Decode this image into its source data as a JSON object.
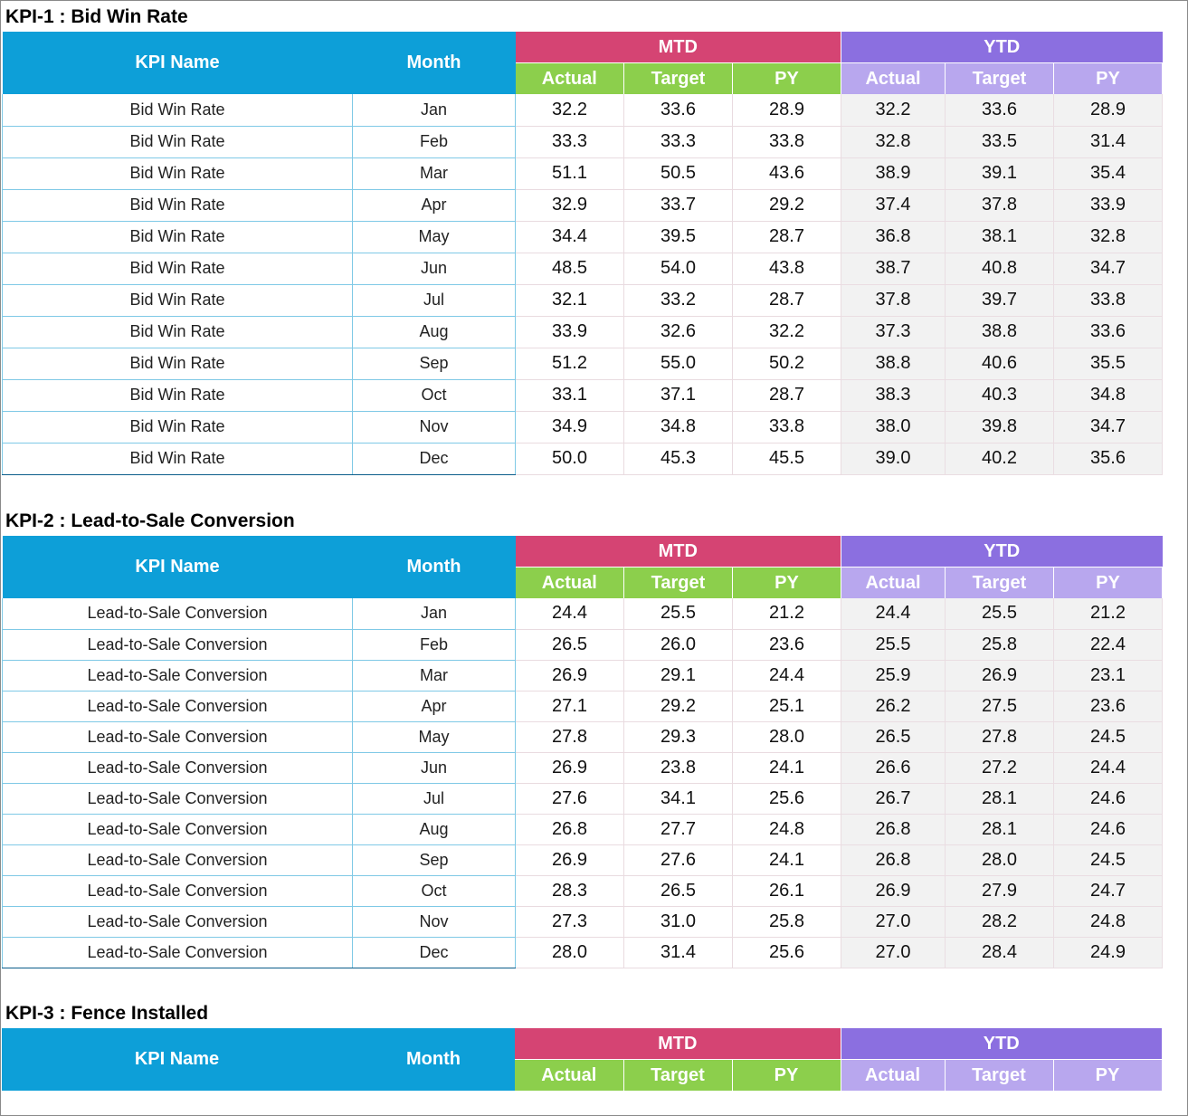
{
  "headers": {
    "kpi_name": "KPI Name",
    "month": "Month",
    "mtd": "MTD",
    "ytd": "YTD",
    "actual": "Actual",
    "target": "Target",
    "py": "PY"
  },
  "kpis": [
    {
      "title": "KPI-1 : Bid Win Rate",
      "rows": [
        {
          "name": "Bid Win Rate",
          "month": "Jan",
          "mtd_actual": "32.2",
          "mtd_target": "33.6",
          "mtd_py": "28.9",
          "ytd_actual": "32.2",
          "ytd_target": "33.6",
          "ytd_py": "28.9"
        },
        {
          "name": "Bid Win Rate",
          "month": "Feb",
          "mtd_actual": "33.3",
          "mtd_target": "33.3",
          "mtd_py": "33.8",
          "ytd_actual": "32.8",
          "ytd_target": "33.5",
          "ytd_py": "31.4"
        },
        {
          "name": "Bid Win Rate",
          "month": "Mar",
          "mtd_actual": "51.1",
          "mtd_target": "50.5",
          "mtd_py": "43.6",
          "ytd_actual": "38.9",
          "ytd_target": "39.1",
          "ytd_py": "35.4"
        },
        {
          "name": "Bid Win Rate",
          "month": "Apr",
          "mtd_actual": "32.9",
          "mtd_target": "33.7",
          "mtd_py": "29.2",
          "ytd_actual": "37.4",
          "ytd_target": "37.8",
          "ytd_py": "33.9"
        },
        {
          "name": "Bid Win Rate",
          "month": "May",
          "mtd_actual": "34.4",
          "mtd_target": "39.5",
          "mtd_py": "28.7",
          "ytd_actual": "36.8",
          "ytd_target": "38.1",
          "ytd_py": "32.8"
        },
        {
          "name": "Bid Win Rate",
          "month": "Jun",
          "mtd_actual": "48.5",
          "mtd_target": "54.0",
          "mtd_py": "43.8",
          "ytd_actual": "38.7",
          "ytd_target": "40.8",
          "ytd_py": "34.7"
        },
        {
          "name": "Bid Win Rate",
          "month": "Jul",
          "mtd_actual": "32.1",
          "mtd_target": "33.2",
          "mtd_py": "28.7",
          "ytd_actual": "37.8",
          "ytd_target": "39.7",
          "ytd_py": "33.8"
        },
        {
          "name": "Bid Win Rate",
          "month": "Aug",
          "mtd_actual": "33.9",
          "mtd_target": "32.6",
          "mtd_py": "32.2",
          "ytd_actual": "37.3",
          "ytd_target": "38.8",
          "ytd_py": "33.6"
        },
        {
          "name": "Bid Win Rate",
          "month": "Sep",
          "mtd_actual": "51.2",
          "mtd_target": "55.0",
          "mtd_py": "50.2",
          "ytd_actual": "38.8",
          "ytd_target": "40.6",
          "ytd_py": "35.5"
        },
        {
          "name": "Bid Win Rate",
          "month": "Oct",
          "mtd_actual": "33.1",
          "mtd_target": "37.1",
          "mtd_py": "28.7",
          "ytd_actual": "38.3",
          "ytd_target": "40.3",
          "ytd_py": "34.8"
        },
        {
          "name": "Bid Win Rate",
          "month": "Nov",
          "mtd_actual": "34.9",
          "mtd_target": "34.8",
          "mtd_py": "33.8",
          "ytd_actual": "38.0",
          "ytd_target": "39.8",
          "ytd_py": "34.7"
        },
        {
          "name": "Bid Win Rate",
          "month": "Dec",
          "mtd_actual": "50.0",
          "mtd_target": "45.3",
          "mtd_py": "45.5",
          "ytd_actual": "39.0",
          "ytd_target": "40.2",
          "ytd_py": "35.6"
        }
      ]
    },
    {
      "title": "KPI-2 : Lead-to-Sale Conversion",
      "rows": [
        {
          "name": "Lead-to-Sale Conversion",
          "month": "Jan",
          "mtd_actual": "24.4",
          "mtd_target": "25.5",
          "mtd_py": "21.2",
          "ytd_actual": "24.4",
          "ytd_target": "25.5",
          "ytd_py": "21.2"
        },
        {
          "name": "Lead-to-Sale Conversion",
          "month": "Feb",
          "mtd_actual": "26.5",
          "mtd_target": "26.0",
          "mtd_py": "23.6",
          "ytd_actual": "25.5",
          "ytd_target": "25.8",
          "ytd_py": "22.4"
        },
        {
          "name": "Lead-to-Sale Conversion",
          "month": "Mar",
          "mtd_actual": "26.9",
          "mtd_target": "29.1",
          "mtd_py": "24.4",
          "ytd_actual": "25.9",
          "ytd_target": "26.9",
          "ytd_py": "23.1"
        },
        {
          "name": "Lead-to-Sale Conversion",
          "month": "Apr",
          "mtd_actual": "27.1",
          "mtd_target": "29.2",
          "mtd_py": "25.1",
          "ytd_actual": "26.2",
          "ytd_target": "27.5",
          "ytd_py": "23.6"
        },
        {
          "name": "Lead-to-Sale Conversion",
          "month": "May",
          "mtd_actual": "27.8",
          "mtd_target": "29.3",
          "mtd_py": "28.0",
          "ytd_actual": "26.5",
          "ytd_target": "27.8",
          "ytd_py": "24.5"
        },
        {
          "name": "Lead-to-Sale Conversion",
          "month": "Jun",
          "mtd_actual": "26.9",
          "mtd_target": "23.8",
          "mtd_py": "24.1",
          "ytd_actual": "26.6",
          "ytd_target": "27.2",
          "ytd_py": "24.4"
        },
        {
          "name": "Lead-to-Sale Conversion",
          "month": "Jul",
          "mtd_actual": "27.6",
          "mtd_target": "34.1",
          "mtd_py": "25.6",
          "ytd_actual": "26.7",
          "ytd_target": "28.1",
          "ytd_py": "24.6"
        },
        {
          "name": "Lead-to-Sale Conversion",
          "month": "Aug",
          "mtd_actual": "26.8",
          "mtd_target": "27.7",
          "mtd_py": "24.8",
          "ytd_actual": "26.8",
          "ytd_target": "28.1",
          "ytd_py": "24.6"
        },
        {
          "name": "Lead-to-Sale Conversion",
          "month": "Sep",
          "mtd_actual": "26.9",
          "mtd_target": "27.6",
          "mtd_py": "24.1",
          "ytd_actual": "26.8",
          "ytd_target": "28.0",
          "ytd_py": "24.5"
        },
        {
          "name": "Lead-to-Sale Conversion",
          "month": "Oct",
          "mtd_actual": "28.3",
          "mtd_target": "26.5",
          "mtd_py": "26.1",
          "ytd_actual": "26.9",
          "ytd_target": "27.9",
          "ytd_py": "24.7"
        },
        {
          "name": "Lead-to-Sale Conversion",
          "month": "Nov",
          "mtd_actual": "27.3",
          "mtd_target": "31.0",
          "mtd_py": "25.8",
          "ytd_actual": "27.0",
          "ytd_target": "28.2",
          "ytd_py": "24.8"
        },
        {
          "name": "Lead-to-Sale Conversion",
          "month": "Dec",
          "mtd_actual": "28.0",
          "mtd_target": "31.4",
          "mtd_py": "25.6",
          "ytd_actual": "27.0",
          "ytd_target": "28.4",
          "ytd_py": "24.9"
        }
      ]
    },
    {
      "title": "KPI-3 : Fence Installed",
      "rows": []
    }
  ]
}
